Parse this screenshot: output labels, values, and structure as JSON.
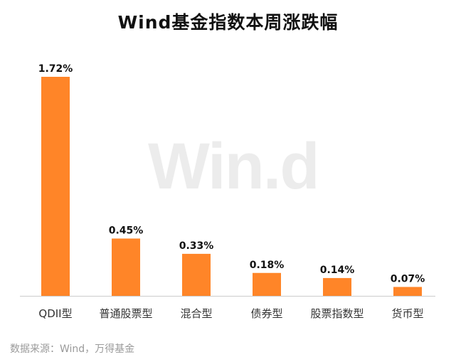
{
  "title": "Wind基金指数本周涨跌幅",
  "watermark": "Win.d",
  "source": "数据来源：Wind，万得基金",
  "colors": {
    "bar": "#FF8528",
    "axis": "#cccccc",
    "text": "#111111",
    "muted": "#9a9a9a"
  },
  "chart_data": {
    "type": "bar",
    "title": "Wind基金指数本周涨跌幅",
    "categories": [
      "QDII型",
      "普通股票型",
      "混合型",
      "债券型",
      "股票指数型",
      "货币型"
    ],
    "values": [
      1.72,
      0.45,
      0.33,
      0.18,
      0.14,
      0.07
    ],
    "data_labels": [
      "1.72%",
      "0.45%",
      "0.33%",
      "0.18%",
      "0.14%",
      "0.07%"
    ],
    "unit": "%",
    "ylim": [
      0,
      1.72
    ],
    "grid": false,
    "legend": "none"
  }
}
